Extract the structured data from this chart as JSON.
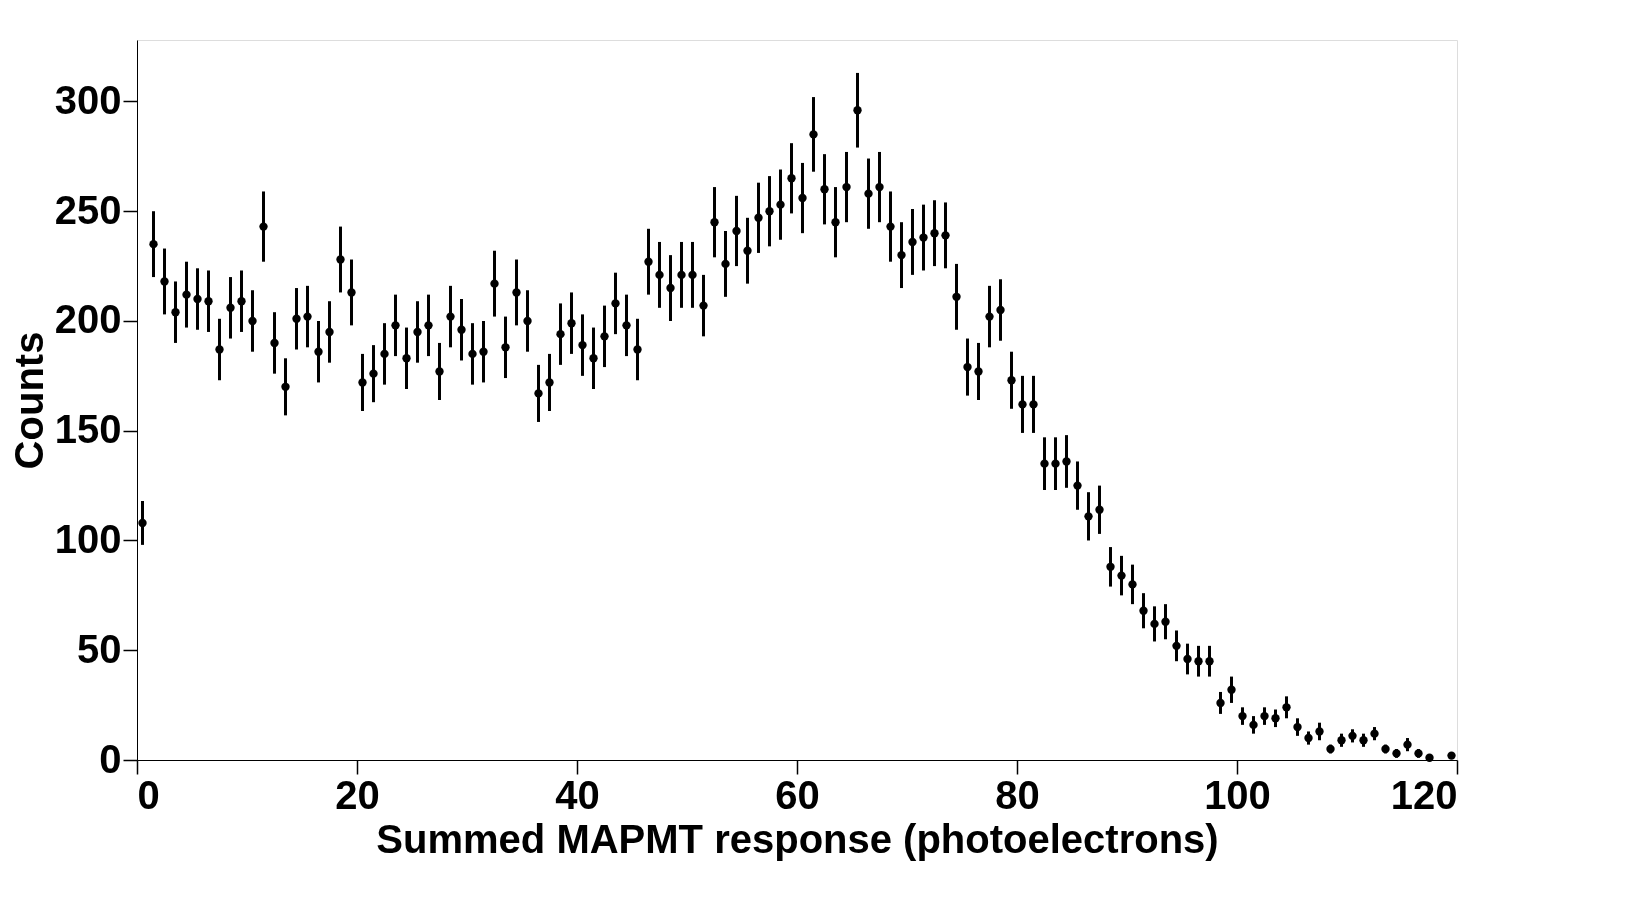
{
  "chart_data": {
    "type": "scatter",
    "xlabel": "Summed MAPMT response (photoelectrons)",
    "ylabel": "Counts",
    "xlim": [
      0,
      120
    ],
    "xticks": [
      0,
      20,
      40,
      60,
      80,
      100,
      120
    ],
    "ylim": [
      0,
      328
    ],
    "yticks": [
      0,
      50,
      100,
      150,
      200,
      250,
      300
    ],
    "grid": false,
    "marker": "circle",
    "series": [
      {
        "color": "#000000",
        "x": [
          0.5,
          1.5,
          2.5,
          3.5,
          4.5,
          5.5,
          6.5,
          7.5,
          8.5,
          9.5,
          10.5,
          11.5,
          12.5,
          13.5,
          14.5,
          15.5,
          16.5,
          17.5,
          18.5,
          19.5,
          20.5,
          21.5,
          22.5,
          23.5,
          24.5,
          25.5,
          26.5,
          27.5,
          28.5,
          29.5,
          30.5,
          31.5,
          32.5,
          33.5,
          34.5,
          35.5,
          36.5,
          37.5,
          38.5,
          39.5,
          40.5,
          41.5,
          42.5,
          43.5,
          44.5,
          45.5,
          46.5,
          47.5,
          48.5,
          49.5,
          50.5,
          51.5,
          52.5,
          53.5,
          54.5,
          55.5,
          56.5,
          57.5,
          58.5,
          59.5,
          60.5,
          61.5,
          62.5,
          63.5,
          64.5,
          65.5,
          66.5,
          67.5,
          68.5,
          69.5,
          70.5,
          71.5,
          72.5,
          73.5,
          74.5,
          75.5,
          76.5,
          77.5,
          78.5,
          79.5,
          80.5,
          81.5,
          82.5,
          83.5,
          84.5,
          85.5,
          86.5,
          87.5,
          88.5,
          89.5,
          90.5,
          91.5,
          92.5,
          93.5,
          94.5,
          95.5,
          96.5,
          97.5,
          98.5,
          99.5,
          100.5,
          101.5,
          102.5,
          103.5,
          104.5,
          105.5,
          106.5,
          107.5,
          108.5,
          109.5,
          110.5,
          111.5,
          112.5,
          113.5,
          114.5,
          115.5,
          116.5,
          117.5,
          119.5
        ],
        "values": [
          108,
          235,
          218,
          204,
          212,
          210,
          209,
          187,
          206,
          209,
          200,
          243,
          190,
          170,
          201,
          202,
          186,
          195,
          228,
          213,
          172,
          176,
          185,
          198,
          183,
          195,
          198,
          177,
          202,
          196,
          185,
          186,
          217,
          188,
          213,
          200,
          167,
          172,
          194,
          199,
          189,
          183,
          193,
          208,
          198,
          187,
          227,
          221,
          215,
          221,
          221,
          207,
          245,
          226,
          241,
          232,
          247,
          250,
          253,
          265,
          256,
          285,
          260,
          245,
          261,
          296,
          258,
          261,
          243,
          230,
          236,
          238,
          240,
          239,
          211,
          179,
          177,
          202,
          205,
          173,
          162,
          162,
          135,
          135,
          136,
          125,
          111,
          114,
          88,
          84,
          80,
          68,
          62,
          63,
          52,
          46,
          45,
          45,
          26,
          32,
          20,
          16,
          20,
          19,
          24,
          15,
          10,
          13,
          5,
          9,
          11,
          9,
          12,
          5,
          3,
          7,
          3,
          1,
          2
        ],
        "errors": [
          10,
          15,
          15,
          14,
          15,
          14,
          14,
          14,
          14,
          14,
          14,
          16,
          14,
          13,
          14,
          14,
          14,
          14,
          15,
          15,
          13,
          13,
          14,
          14,
          14,
          14,
          14,
          13,
          14,
          14,
          14,
          14,
          15,
          14,
          15,
          14,
          13,
          13,
          14,
          14,
          14,
          14,
          14,
          14,
          14,
          14,
          15,
          15,
          15,
          15,
          15,
          14,
          16,
          15,
          16,
          15,
          16,
          16,
          16,
          16,
          16,
          17,
          16,
          16,
          16,
          17,
          16,
          16,
          16,
          15,
          15,
          15,
          15,
          15,
          15,
          13,
          13,
          14,
          14,
          13,
          13,
          13,
          12,
          12,
          12,
          11,
          11,
          11,
          9,
          9,
          9,
          8,
          8,
          8,
          7,
          7,
          7,
          7,
          5,
          6,
          4,
          4,
          4,
          4,
          5,
          4,
          3,
          4,
          2,
          3,
          3,
          3,
          3,
          2,
          2,
          3,
          2,
          1,
          1
        ]
      }
    ]
  }
}
